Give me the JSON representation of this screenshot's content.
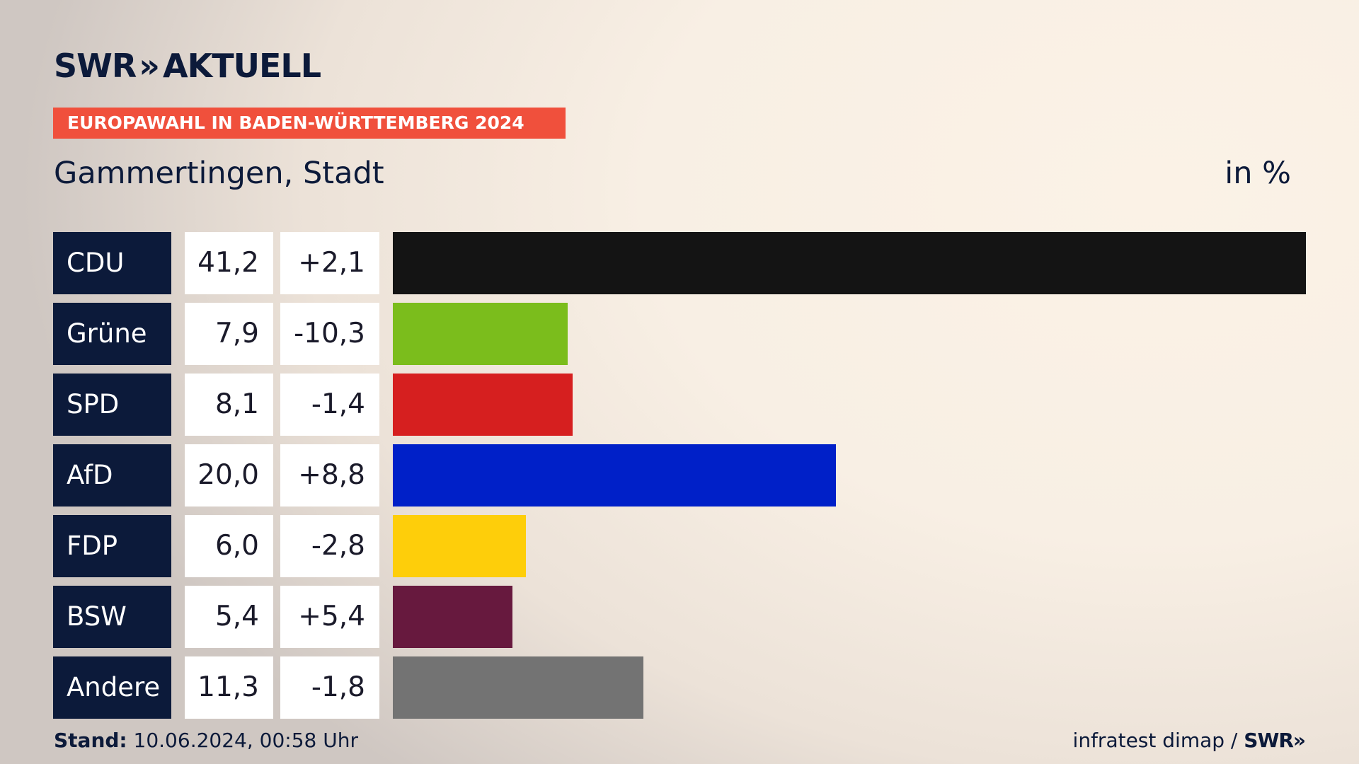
{
  "header": {
    "logo_brand": "SWR",
    "logo_chevrons": "»",
    "logo_text": "AKTUELL",
    "banner": "EUROPAWAHL IN BADEN-WÜRTTEMBERG 2024",
    "title": "Gammertingen, Stadt",
    "unit": "in %"
  },
  "footer": {
    "stand_label": "Stand:",
    "stand_value": "10.06.2024, 00:58 Uhr",
    "source": "infratest dimap /",
    "source_brand": "SWR",
    "source_chevrons": "»"
  },
  "colors": {
    "navy": "#0c1a3a",
    "banner": "#f0503c"
  },
  "chart_data": {
    "type": "bar",
    "orientation": "horizontal",
    "categories": [
      "CDU",
      "Grüne",
      "SPD",
      "AfD",
      "FDP",
      "BSW",
      "Andere"
    ],
    "values": [
      41.2,
      7.9,
      8.1,
      20.0,
      6.0,
      5.4,
      11.3
    ],
    "value_labels": [
      "41,2",
      "7,9",
      "8,1",
      "20,0",
      "6,0",
      "5,4",
      "11,3"
    ],
    "diff_labels": [
      "+2,1",
      "-10,3",
      "-1,4",
      "+8,8",
      "-2,8",
      "+5,4",
      "-1,8"
    ],
    "bar_colors": [
      "#141414",
      "#7bbd1c",
      "#d61f1f",
      "#0020c8",
      "#fece0a",
      "#67193e",
      "#737373"
    ],
    "xlim": [
      0,
      41.2
    ]
  }
}
